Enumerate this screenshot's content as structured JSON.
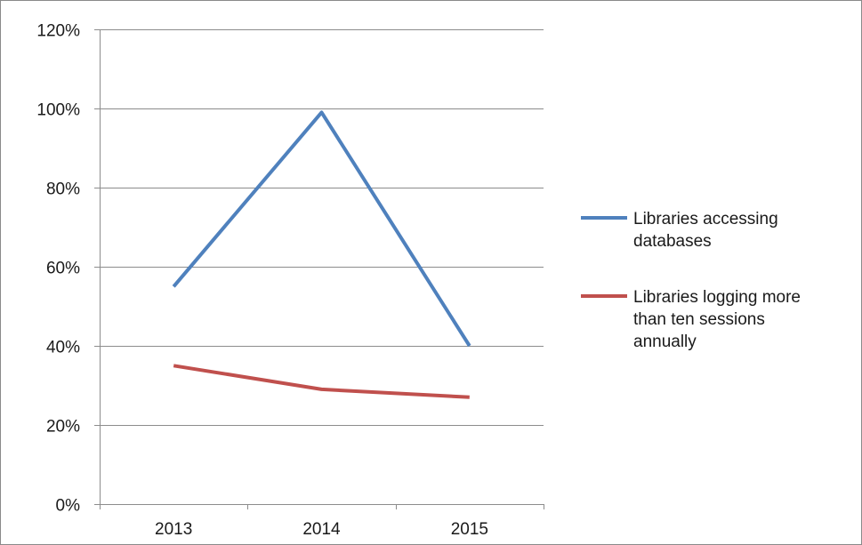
{
  "chart_data": {
    "type": "line",
    "title": "",
    "xlabel": "",
    "ylabel": "",
    "categories": [
      "2013",
      "2014",
      "2015"
    ],
    "ylim": [
      0,
      1.2
    ],
    "y_ticks": [
      0,
      0.2,
      0.4,
      0.6,
      0.8,
      1.0,
      1.2
    ],
    "y_tick_labels": [
      "0%",
      "20%",
      "40%",
      "60%",
      "80%",
      "100%",
      "120%"
    ],
    "grid": "horizontal",
    "legend_position": "right",
    "series": [
      {
        "name": "Libraries accessing databases",
        "legend_lines": [
          "Libraries accessing",
          "databases"
        ],
        "color": "#4f81bd",
        "values": [
          0.55,
          0.99,
          0.4
        ]
      },
      {
        "name": "Libraries logging more than ten sessions annually",
        "legend_lines": [
          "Libraries logging more",
          "than ten sessions",
          "annually"
        ],
        "color": "#c0504d",
        "values": [
          0.35,
          0.29,
          0.27
        ]
      }
    ]
  }
}
